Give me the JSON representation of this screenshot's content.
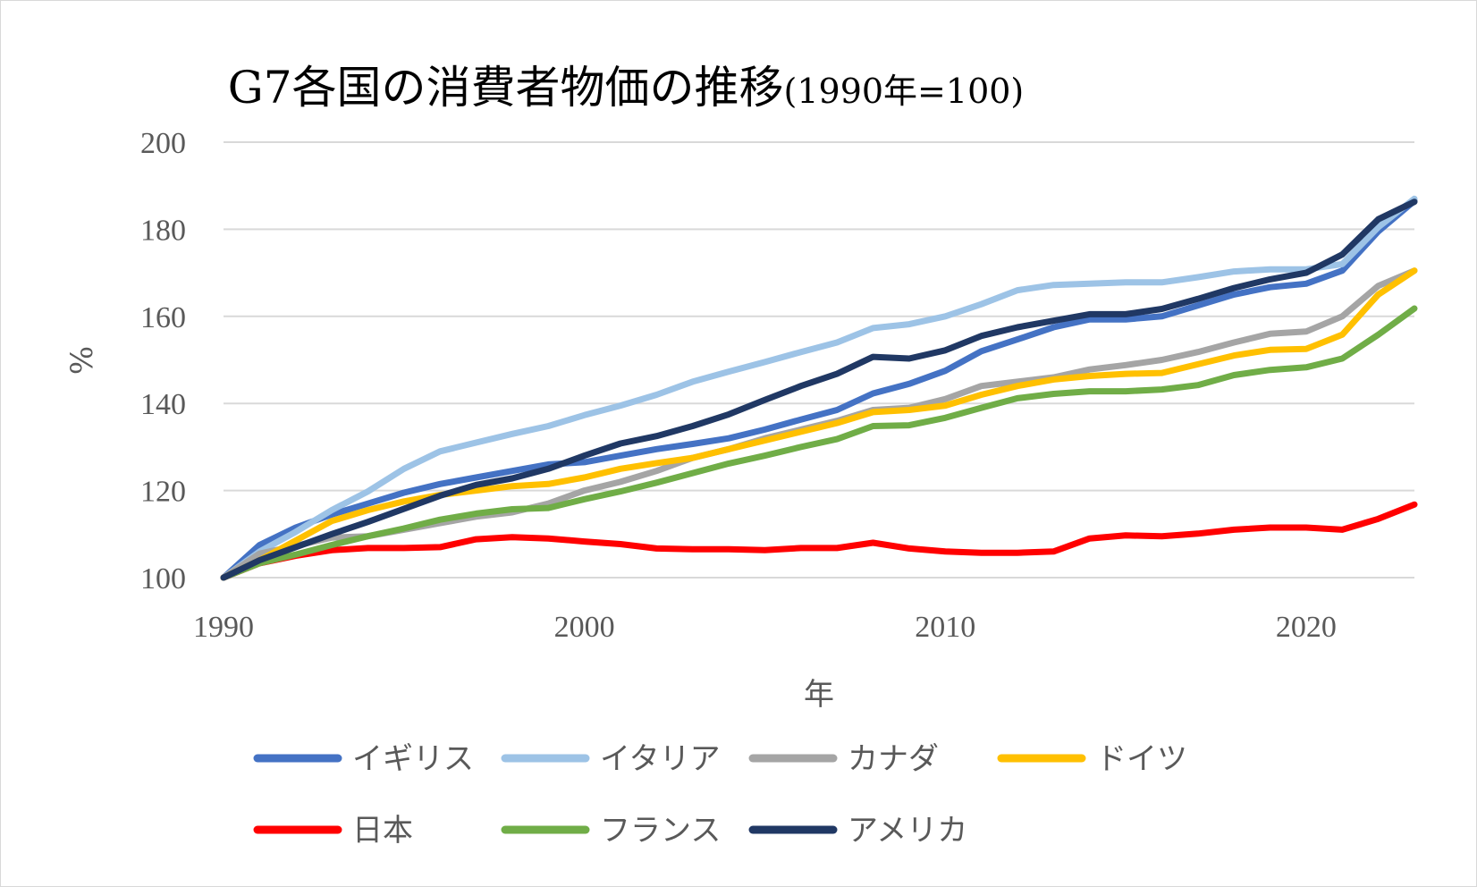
{
  "chart_data": {
    "type": "line",
    "title": "G7各国の消費者物価の推移",
    "subtitle": "(1990年=100)",
    "xlabel": "年",
    "ylabel": "%",
    "xlim": [
      1990,
      2023
    ],
    "ylim": [
      100,
      200
    ],
    "x_ticks": [
      "1990",
      "2000",
      "2010",
      "2020"
    ],
    "y_ticks": [
      "100",
      "120",
      "140",
      "160",
      "180",
      "200"
    ],
    "grid": true,
    "legend_position": "bottom",
    "x": [
      1990,
      1991,
      1992,
      1993,
      1994,
      1995,
      1996,
      1997,
      1998,
      1999,
      2000,
      2001,
      2002,
      2003,
      2004,
      2005,
      2006,
      2007,
      2008,
      2009,
      2010,
      2011,
      2012,
      2013,
      2014,
      2015,
      2016,
      2017,
      2018,
      2019,
      2020,
      2021,
      2022,
      2023
    ],
    "series": [
      {
        "name": "イギリス",
        "color": "#4472C4",
        "values": [
          100,
          107.5,
          111.5,
          114.5,
          117,
          119.5,
          121.5,
          123,
          124.5,
          126,
          126.5,
          128,
          129.5,
          130.7,
          132,
          134,
          136.3,
          138.5,
          142.3,
          144.5,
          147.5,
          152,
          154.7,
          157.5,
          159.3,
          159.3,
          160,
          162.5,
          165,
          166.7,
          167.5,
          170.5,
          179.5,
          186.5
        ]
      },
      {
        "name": "イタリア",
        "color": "#9DC3E6",
        "values": [
          100,
          106,
          110.5,
          115.5,
          119.8,
          125,
          129,
          131,
          133,
          134.8,
          137.3,
          139.5,
          142,
          145,
          147.3,
          149.5,
          151.8,
          154,
          157.3,
          158.2,
          160,
          162.8,
          166,
          167.2,
          167.5,
          167.8,
          167.8,
          169,
          170.3,
          170.8,
          170.8,
          172,
          180.5,
          187
        ]
      },
      {
        "name": "カナダ",
        "color": "#A5A5A5",
        "values": [
          100,
          105.5,
          107.3,
          109.2,
          109.5,
          111,
          112.5,
          114,
          115,
          117,
          120,
          122,
          124.5,
          127.5,
          129.5,
          132,
          134,
          136,
          138.5,
          139,
          141,
          144,
          145,
          146,
          147.8,
          148.8,
          150,
          151.8,
          154,
          156,
          156.5,
          160,
          167,
          170.5
        ]
      },
      {
        "name": "ドイツ",
        "color": "#FFC000",
        "values": [
          100,
          104,
          108.5,
          113,
          115.5,
          117.5,
          119,
          120,
          121,
          121.5,
          123,
          125,
          126.3,
          127.5,
          129.5,
          131.5,
          133.5,
          135.5,
          138,
          138.5,
          139.5,
          142,
          144,
          145.5,
          146.3,
          146.8,
          147,
          149,
          151,
          152.3,
          152.5,
          155.8,
          165,
          170.5
        ]
      },
      {
        "name": "日本",
        "color": "#FF0000",
        "values": [
          100,
          103.3,
          105,
          106.3,
          106.8,
          106.8,
          107,
          108.8,
          109.3,
          109,
          108.3,
          107.7,
          106.7,
          106.5,
          106.5,
          106.3,
          106.8,
          106.8,
          108,
          106.7,
          106,
          105.7,
          105.7,
          106,
          109,
          109.7,
          109.5,
          110.1,
          111,
          111.5,
          111.5,
          111,
          113.5,
          116.8
        ]
      },
      {
        "name": "フランス",
        "color": "#70AD47",
        "values": [
          100,
          103.3,
          105.3,
          107.5,
          109.5,
          111.3,
          113.3,
          114.7,
          115.7,
          116,
          118,
          119.8,
          121.8,
          124,
          126.2,
          128,
          130,
          131.8,
          134.8,
          135,
          136.7,
          139,
          141.2,
          142.2,
          142.8,
          142.8,
          143.2,
          144.2,
          146.5,
          147.7,
          148.3,
          150.3,
          155.8,
          161.8
        ]
      },
      {
        "name": "アメリカ",
        "color": "#203864",
        "values": [
          100,
          104,
          107,
          110,
          112.8,
          115.8,
          118.8,
          121.3,
          122.8,
          125,
          128,
          130.8,
          132.5,
          134.8,
          137.5,
          140.8,
          144,
          146.8,
          150.7,
          150.3,
          152.2,
          155.5,
          157.5,
          159,
          160.5,
          160.5,
          161.7,
          164,
          166.5,
          168.5,
          170,
          174.2,
          182.3,
          186.3
        ]
      }
    ]
  }
}
